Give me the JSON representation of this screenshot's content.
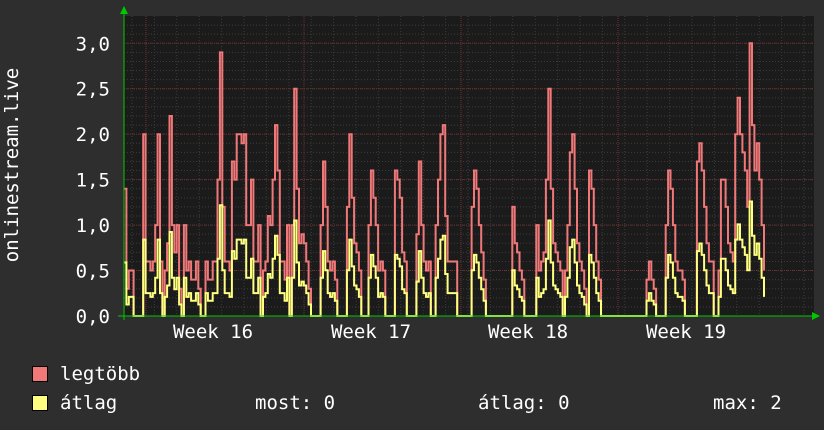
{
  "chart_data": {
    "type": "line",
    "ylabel": "onlinestream.live",
    "y_ticks": [
      "0,0",
      "0,5",
      "1,0",
      "1,5",
      "2,0",
      "2,5",
      "3,0"
    ],
    "ylim": [
      0,
      3.3
    ],
    "x_ticks": [
      "Week 16",
      "Week 17",
      "Week 18",
      "Week 19"
    ],
    "grid": true,
    "series": [
      {
        "name": "legtöbb",
        "color": "#f07878",
        "values": [
          1.4,
          0.3,
          0.5,
          0.5,
          0.0,
          0.0,
          0.0,
          0.0,
          2.0,
          0.6,
          0.6,
          0.5,
          0.6,
          1.0,
          2.0,
          0.6,
          0.0,
          0.5,
          0.8,
          2.2,
          1.0,
          0.7,
          1.0,
          0.3,
          0.0,
          1.0,
          0.5,
          0.6,
          0.4,
          0.4,
          0.6,
          0.3,
          0.0,
          0.0,
          0.6,
          0.4,
          0.4,
          0.6,
          0.6,
          1.5,
          2.9,
          1.2,
          0.6,
          0.6,
          0.5,
          1.7,
          1.5,
          2.0,
          2.0,
          1.9,
          2.0,
          1.0,
          1.0,
          1.5,
          0.6,
          0.6,
          1.0,
          0.0,
          0.5,
          0.6,
          1.1,
          1.0,
          1.5,
          2.1,
          1.6,
          0.6,
          0.6,
          0.4,
          1.0,
          0.0,
          1.0,
          2.5,
          1.4,
          0.8,
          0.9,
          0.8,
          0.6,
          0.3,
          0.0,
          0.0,
          0.0,
          0.0,
          1.0,
          1.7,
          1.2,
          0.6,
          0.5,
          0.6,
          0.4,
          0.0,
          0.0,
          0.0,
          0.0,
          1.2,
          2.0,
          1.3,
          0.8,
          0.7,
          0.5,
          0.0,
          0.0,
          0.0,
          1.0,
          1.6,
          1.3,
          1.0,
          0.5,
          0.6,
          0.5,
          0.0,
          0.0,
          0.0,
          0.0,
          1.6,
          1.5,
          1.3,
          0.7,
          0.6,
          0.0,
          0.0,
          0.0,
          0.0,
          0.9,
          1.7,
          1.0,
          0.6,
          0.5,
          0.6,
          0.0,
          0.0,
          1.0,
          1.5,
          2.0,
          2.1,
          1.1,
          0.6,
          0.6,
          0.6,
          0.6,
          0.0,
          0.0,
          0.0,
          0.0,
          0.0,
          0.0,
          1.2,
          1.6,
          1.4,
          1.0,
          0.7,
          0.4,
          0.0,
          0.0,
          0.0,
          0.0,
          0.0,
          0.0,
          0.0,
          0.0,
          0.0,
          0.0,
          0.0,
          1.2,
          0.8,
          0.7,
          0.5,
          0.4,
          0.0,
          0.0,
          0.0,
          0.0,
          0.0,
          1.0,
          0.5,
          0.6,
          0.7,
          1.5,
          2.5,
          1.4,
          0.8,
          0.7,
          0.6,
          0.5,
          0.0,
          0.5,
          1.0,
          1.8,
          2.0,
          1.4,
          0.8,
          0.6,
          0.5,
          0.3,
          0.0,
          1.6,
          1.4,
          1.0,
          0.6,
          0.4,
          0.0,
          0.0,
          0.0,
          0.0,
          0.0,
          0.0,
          0.0,
          0.0,
          0.0,
          0.0,
          0.0,
          0.0,
          0.0,
          0.0,
          0.0,
          0.0,
          0.0,
          0.0,
          0.0,
          0.4,
          0.6,
          0.4,
          0.3,
          0.0,
          0.0,
          0.0,
          0.0,
          1.0,
          1.6,
          1.4,
          1.0,
          0.6,
          0.5,
          0.5,
          0.4,
          0.0,
          0.0,
          0.0,
          0.0,
          0.0,
          1.7,
          1.9,
          1.6,
          1.2,
          0.8,
          0.6,
          0.6,
          0.0,
          0.0,
          0.5,
          1.5,
          1.5,
          1.2,
          0.8,
          0.7,
          0.6,
          2.0,
          2.4,
          2.0,
          1.8,
          1.6,
          1.2,
          3.0,
          2.1,
          1.6,
          1.9,
          1.5,
          1.0,
          0.5
        ],
        "values_note": "legtöbb series approximate"
      }
    ]
  },
  "legend": {
    "items": [
      {
        "name": "legtöbb",
        "color": "#f07878"
      },
      {
        "name": "átlag",
        "color": "#ffff80"
      }
    ]
  },
  "stats": {
    "most": "most: 0",
    "atlag": "átlag: 0",
    "max": "max: 2"
  }
}
